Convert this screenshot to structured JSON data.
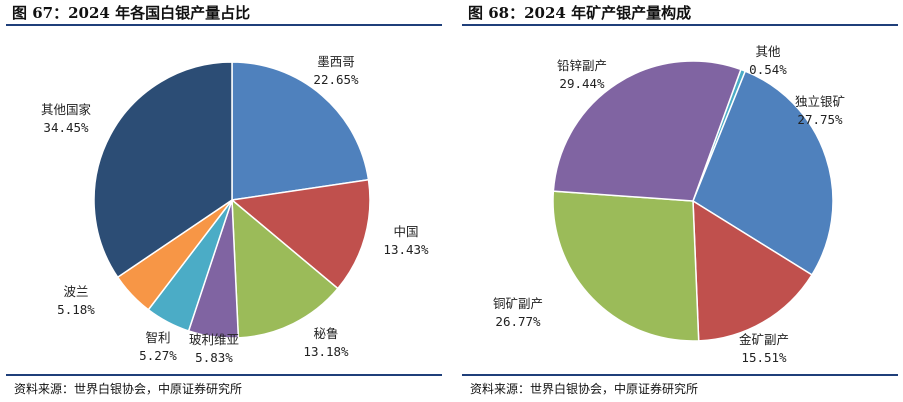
{
  "chart_data": [
    {
      "type": "pie",
      "title": "图 67：2024 年各国白银产量占比",
      "source": "资料来源：世界白银协会，中原证券研究所",
      "slices": [
        {
          "name": "墨西哥",
          "value": 22.65,
          "label": "22.65%",
          "color": "#4f81bd"
        },
        {
          "name": "中国",
          "value": 13.43,
          "label": "13.43%",
          "color": "#c0504d"
        },
        {
          "name": "秘鲁",
          "value": 13.18,
          "label": "13.18%",
          "color": "#9bbb59"
        },
        {
          "name": "玻利维亚",
          "value": 5.83,
          "label": "5.83%",
          "color": "#8064a2"
        },
        {
          "name": "智利",
          "value": 5.27,
          "label": "5.27%",
          "color": "#4bacc6"
        },
        {
          "name": "波兰",
          "value": 5.18,
          "label": "5.18%",
          "color": "#f79646"
        },
        {
          "name": "其他国家",
          "value": 34.45,
          "label": "34.45%",
          "color": "#2c4d75"
        }
      ]
    },
    {
      "type": "pie",
      "title": "图 68：2024 年矿产银产量构成",
      "source": "资料来源：世界白银协会，中原证券研究所",
      "slices": [
        {
          "name": "其他",
          "value": 0.54,
          "label": "0.54%",
          "color": "#4bacc6"
        },
        {
          "name": "独立银矿",
          "value": 27.75,
          "label": "27.75%",
          "color": "#4f81bd"
        },
        {
          "name": "金矿副产",
          "value": 15.51,
          "label": "15.51%",
          "color": "#c0504d"
        },
        {
          "name": "铜矿副产",
          "value": 26.77,
          "label": "26.77%",
          "color": "#9bbb59"
        },
        {
          "name": "铅锌副产",
          "value": 29.44,
          "label": "29.44%",
          "color": "#8064a2"
        }
      ]
    }
  ]
}
